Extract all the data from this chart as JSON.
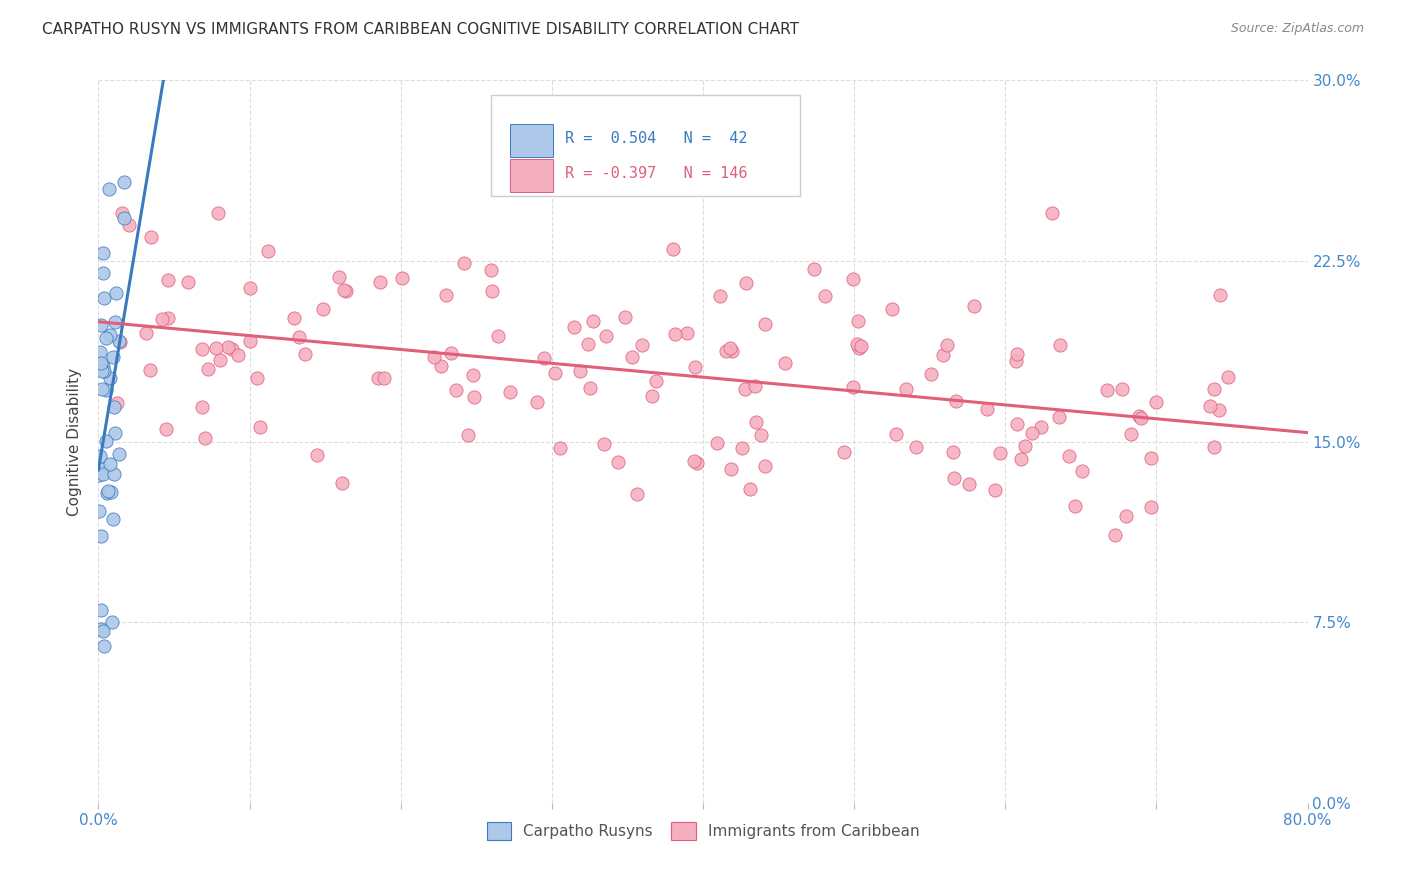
{
  "title": "CARPATHO RUSYN VS IMMIGRANTS FROM CARIBBEAN COGNITIVE DISABILITY CORRELATION CHART",
  "source": "Source: ZipAtlas.com",
  "ylabel": "Cognitive Disability",
  "ytick_vals": [
    0.0,
    7.5,
    15.0,
    22.5,
    30.0
  ],
  "xtick_vals": [
    0.0,
    10.0,
    20.0,
    30.0,
    40.0,
    50.0,
    60.0,
    70.0,
    80.0
  ],
  "xlim": [
    0.0,
    80.0
  ],
  "ylim": [
    0.0,
    30.0
  ],
  "color_blue": "#adc8e8",
  "color_pink": "#f5afc0",
  "line_blue": "#3a7abf",
  "line_pink": "#e0607a",
  "legend_label_blue": "Carpatho Rusyns",
  "legend_label_pink": "Immigrants from Caribbean",
  "r_blue": 0.504,
  "n_blue": 42,
  "r_pink": -0.397,
  "n_pink": 146
}
